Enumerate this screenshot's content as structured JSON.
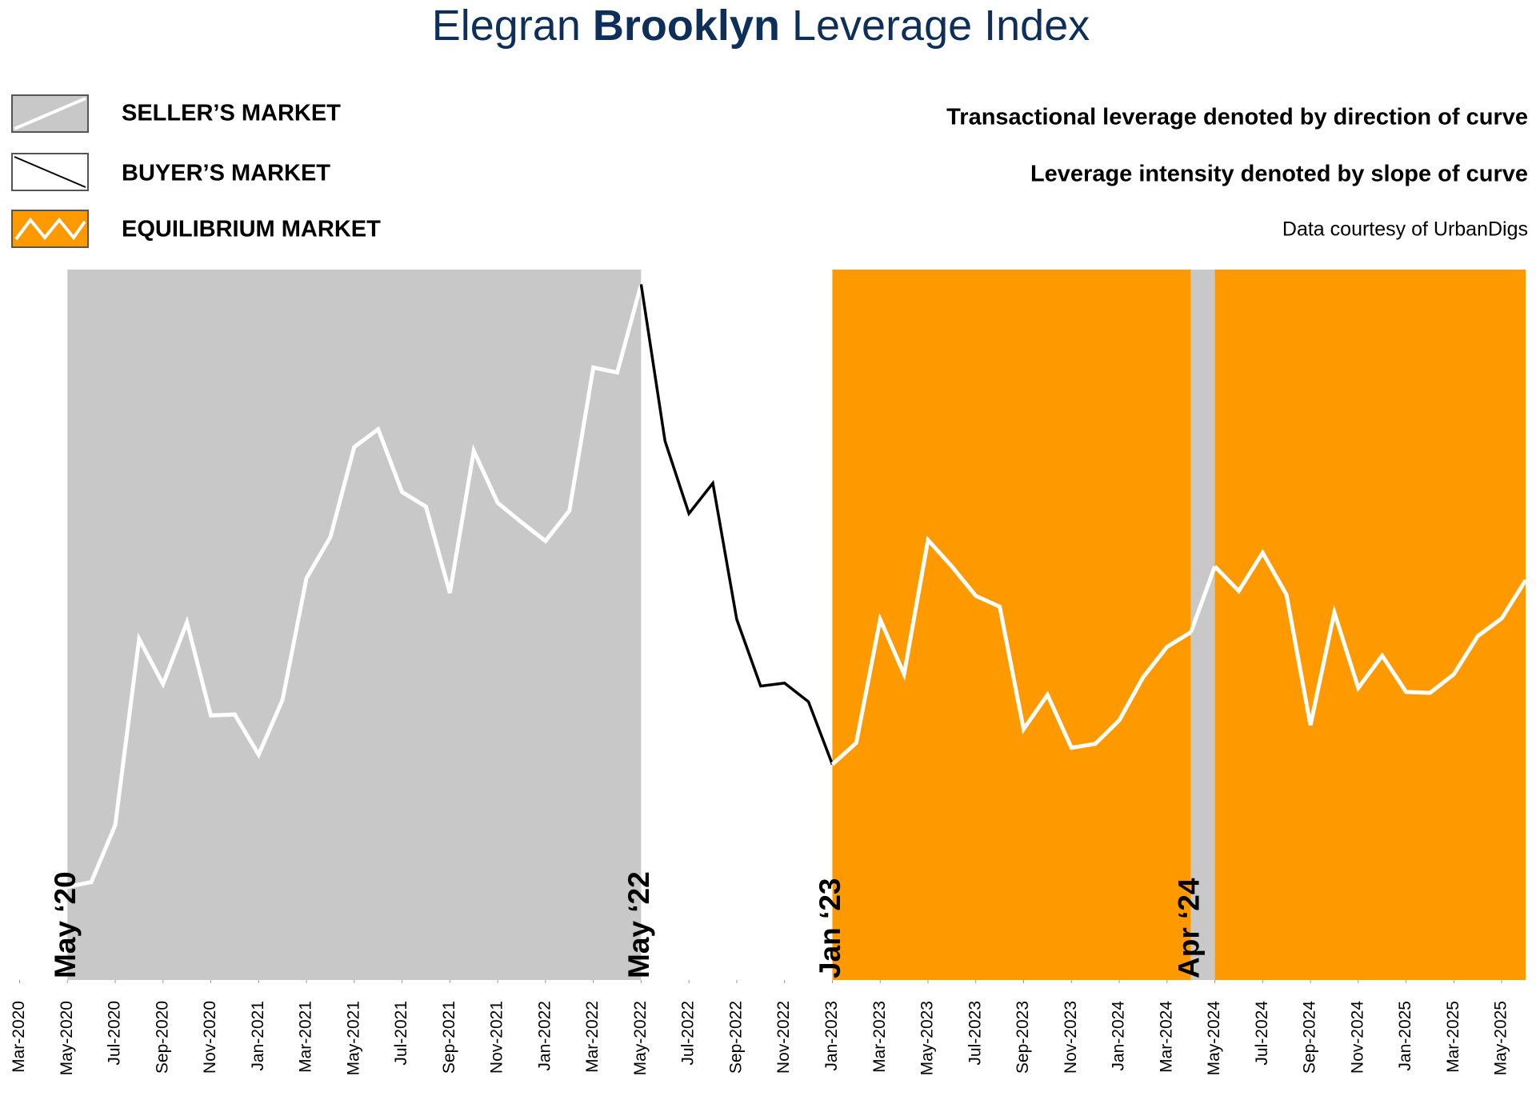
{
  "chart_data": {
    "type": "line",
    "title_prefix": "Elegran",
    "title_emphasis": "Brooklyn",
    "title_suffix": "Leverage Index",
    "notes": [
      "Transactional leverage denoted by direction of curve",
      "Leverage intensity denoted by slope of curve"
    ],
    "source": "Data courtesy of UrbanDigs",
    "legend": [
      {
        "name": "SELLER’S MARKET",
        "color": "#c8c8c8",
        "line_color": "#ffffff"
      },
      {
        "name": "BUYER’S MARKET",
        "color": "#ffffff",
        "line_color": "#000000"
      },
      {
        "name": "EQUILIBRIUM MARKET",
        "color": "#ff9900",
        "line_color": "#ffffff"
      }
    ],
    "regions": [
      {
        "legend": 0,
        "start": "2020-05",
        "end": "2022-05",
        "label": "May ‘20"
      },
      {
        "legend": 1,
        "start": "2022-05",
        "end": "2023-01",
        "label": "May ‘22"
      },
      {
        "legend": 2,
        "start": "2023-01",
        "end": "2024-04",
        "label": "Jan ‘23"
      },
      {
        "legend": 0,
        "start": "2024-04",
        "end": "2024-05",
        "label": "Apr ‘24"
      },
      {
        "legend": 2,
        "start": "2024-05",
        "end": "2025-06"
      }
    ],
    "x": [
      "2020-05",
      "2020-06",
      "2020-07",
      "2020-08",
      "2020-09",
      "2020-10",
      "2020-11",
      "2020-12",
      "2021-01",
      "2021-02",
      "2021-03",
      "2021-04",
      "2021-05",
      "2021-06",
      "2021-07",
      "2021-08",
      "2021-09",
      "2021-10",
      "2021-11",
      "2021-12",
      "2022-01",
      "2022-02",
      "2022-03",
      "2022-04",
      "2022-05",
      "2022-06",
      "2022-07",
      "2022-08",
      "2022-09",
      "2022-10",
      "2022-11",
      "2022-12",
      "2023-01",
      "2023-02",
      "2023-03",
      "2023-04",
      "2023-05",
      "2023-06",
      "2023-07",
      "2023-08",
      "2023-09",
      "2023-10",
      "2023-11",
      "2023-12",
      "2024-01",
      "2024-02",
      "2024-03",
      "2024-04",
      "2024-05",
      "2024-06",
      "2024-07",
      "2024-08",
      "2024-09",
      "2024-10",
      "2024-11",
      "2024-12",
      "2025-01",
      "2025-02",
      "2025-03",
      "2025-04",
      "2025-05",
      "2025-06"
    ],
    "series": [
      {
        "values": [
          95,
          100,
          158,
          348,
          302,
          365,
          270,
          271,
          230,
          286,
          410,
          452,
          544,
          562,
          498,
          483,
          395,
          540,
          487,
          467,
          448,
          479,
          625,
          620,
          710,
          550,
          476,
          507,
          368,
          300,
          303,
          284,
          220,
          242,
          368,
          312,
          449,
          422,
          392,
          381,
          256,
          291,
          237,
          241,
          265,
          309,
          340,
          355,
          422,
          397,
          436,
          393,
          260,
          375,
          298,
          331,
          294,
          293,
          312,
          351,
          369,
          408
        ]
      }
    ],
    "ylim": [
      0,
      725
    ],
    "xlim": [
      "2020-03",
      "2025-06"
    ],
    "xticks": [
      {
        "value": "2020-03",
        "label": "Mar-2020"
      },
      {
        "value": "2020-05",
        "label": "May-2020"
      },
      {
        "value": "2020-07",
        "label": "Jul-2020"
      },
      {
        "value": "2020-09",
        "label": "Sep-2020"
      },
      {
        "value": "2020-11",
        "label": "Nov-2020"
      },
      {
        "value": "2021-01",
        "label": "Jan-2021"
      },
      {
        "value": "2021-03",
        "label": "Mar-2021"
      },
      {
        "value": "2021-05",
        "label": "May-2021"
      },
      {
        "value": "2021-07",
        "label": "Jul-2021"
      },
      {
        "value": "2021-09",
        "label": "Sep-2021"
      },
      {
        "value": "2021-11",
        "label": "Nov-2021"
      },
      {
        "value": "2022-01",
        "label": "Jan-2022"
      },
      {
        "value": "2022-03",
        "label": "Mar-2022"
      },
      {
        "value": "2022-05",
        "label": "May-2022"
      },
      {
        "value": "2022-07",
        "label": "Jul-2022"
      },
      {
        "value": "2022-09",
        "label": "Sep-2022"
      },
      {
        "value": "2022-11",
        "label": "Nov-2022"
      },
      {
        "value": "2023-01",
        "label": "Jan-2023"
      },
      {
        "value": "2023-03",
        "label": "Mar-2023"
      },
      {
        "value": "2023-05",
        "label": "May-2023"
      },
      {
        "value": "2023-07",
        "label": "Jul-2023"
      },
      {
        "value": "2023-09",
        "label": "Sep-2023"
      },
      {
        "value": "2023-11",
        "label": "Nov-2023"
      },
      {
        "value": "2024-01",
        "label": "Jan-2024"
      },
      {
        "value": "2024-03",
        "label": "Mar-2024"
      },
      {
        "value": "2024-05",
        "label": "May-2024"
      },
      {
        "value": "2024-07",
        "label": "Jul-2024"
      },
      {
        "value": "2024-09",
        "label": "Sep-2024"
      },
      {
        "value": "2024-11",
        "label": "Nov-2024"
      },
      {
        "value": "2025-01",
        "label": "Jan-2025"
      },
      {
        "value": "2025-03",
        "label": "Mar-2025"
      },
      {
        "value": "2025-05",
        "label": "May-2025"
      }
    ]
  }
}
